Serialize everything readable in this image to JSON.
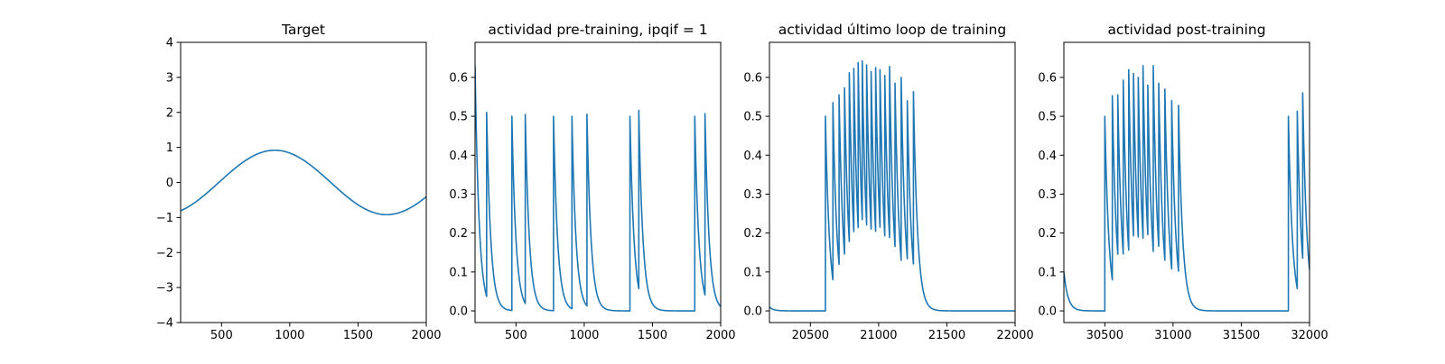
{
  "chart_data": [
    {
      "type": "line",
      "title": "Target",
      "xlim": [
        200,
        2000
      ],
      "ylim": [
        -4,
        4
      ],
      "xticks": [
        500,
        1000,
        1500,
        2000
      ],
      "yticks": [
        -4,
        -3,
        -2,
        -1,
        0,
        1,
        2,
        3,
        4
      ],
      "color": "#1f77b4",
      "series": [
        {
          "kind": "sine",
          "amplitude": 0.92,
          "period": 1640,
          "peak_x": 890,
          "x_range": [
            200,
            2000
          ]
        }
      ]
    },
    {
      "type": "line",
      "title": "actividad pre-training, ipqif = 1",
      "xlim": [
        200,
        2000
      ],
      "ylim": [
        -0.03,
        0.69
      ],
      "xticks": [
        500,
        1000,
        1500,
        2000
      ],
      "yticks": [
        0.0,
        0.1,
        0.2,
        0.3,
        0.4,
        0.5,
        0.6
      ],
      "color": "#1f77b4",
      "series": [
        {
          "kind": "spike-train",
          "x_range": [
            200,
            2000
          ],
          "decay": 30,
          "initial_value": 0.63,
          "spikes": [
            {
              "x": 285,
              "peak": 0.51
            },
            {
              "x": 470,
              "peak": 0.5
            },
            {
              "x": 568,
              "peak": 0.505
            },
            {
              "x": 775,
              "peak": 0.5
            },
            {
              "x": 910,
              "peak": 0.5
            },
            {
              "x": 1020,
              "peak": 0.505
            },
            {
              "x": 1335,
              "peak": 0.5
            },
            {
              "x": 1400,
              "peak": 0.515
            },
            {
              "x": 1810,
              "peak": 0.5
            },
            {
              "x": 1885,
              "peak": 0.507
            }
          ]
        }
      ]
    },
    {
      "type": "line",
      "title": "actividad último loop de training",
      "xlim": [
        20200,
        22000
      ],
      "ylim": [
        -0.03,
        0.69
      ],
      "xticks": [
        20500,
        21000,
        21500,
        22000
      ],
      "yticks": [
        0.0,
        0.1,
        0.2,
        0.3,
        0.4,
        0.5,
        0.6
      ],
      "color": "#1f77b4",
      "series": [
        {
          "kind": "spike-train",
          "x_range": [
            20200,
            22000
          ],
          "decay": 30,
          "initial_value": 0.01,
          "spikes": [
            {
              "x": 20610,
              "peak": 0.5
            },
            {
              "x": 20665,
              "peak": 0.535
            },
            {
              "x": 20710,
              "peak": 0.555
            },
            {
              "x": 20750,
              "peak": 0.573
            },
            {
              "x": 20785,
              "peak": 0.612
            },
            {
              "x": 20818,
              "peak": 0.623
            },
            {
              "x": 20850,
              "peak": 0.638
            },
            {
              "x": 20880,
              "peak": 0.642
            },
            {
              "x": 20912,
              "peak": 0.632
            },
            {
              "x": 20945,
              "peak": 0.615
            },
            {
              "x": 20978,
              "peak": 0.625
            },
            {
              "x": 21010,
              "peak": 0.62
            },
            {
              "x": 21045,
              "peak": 0.605
            },
            {
              "x": 21080,
              "peak": 0.628
            },
            {
              "x": 21120,
              "peak": 0.585
            },
            {
              "x": 21165,
              "peak": 0.6
            },
            {
              "x": 21210,
              "peak": 0.54
            },
            {
              "x": 21255,
              "peak": 0.563
            }
          ]
        }
      ]
    },
    {
      "type": "line",
      "title": "actividad post-training",
      "xlim": [
        30200,
        32000
      ],
      "ylim": [
        -0.03,
        0.69
      ],
      "xticks": [
        30500,
        31000,
        31500,
        32000
      ],
      "yticks": [
        0.0,
        0.1,
        0.2,
        0.3,
        0.4,
        0.5,
        0.6
      ],
      "color": "#1f77b4",
      "series": [
        {
          "kind": "spike-train",
          "x_range": [
            30200,
            32000
          ],
          "decay": 30,
          "initial_value": 0.1,
          "spikes": [
            {
              "x": 30500,
              "peak": 0.5
            },
            {
              "x": 30555,
              "peak": 0.553
            },
            {
              "x": 30595,
              "peak": 0.555
            },
            {
              "x": 30635,
              "peak": 0.593
            },
            {
              "x": 30675,
              "peak": 0.62
            },
            {
              "x": 30710,
              "peak": 0.61
            },
            {
              "x": 30745,
              "peak": 0.6
            },
            {
              "x": 30780,
              "peak": 0.63
            },
            {
              "x": 30815,
              "peak": 0.58
            },
            {
              "x": 30855,
              "peak": 0.63
            },
            {
              "x": 30895,
              "peak": 0.585
            },
            {
              "x": 30940,
              "peak": 0.57
            },
            {
              "x": 30990,
              "peak": 0.54
            },
            {
              "x": 31040,
              "peak": 0.528
            },
            {
              "x": 31845,
              "peak": 0.5
            },
            {
              "x": 31910,
              "peak": 0.513
            },
            {
              "x": 31950,
              "peak": 0.56
            }
          ]
        }
      ]
    }
  ]
}
